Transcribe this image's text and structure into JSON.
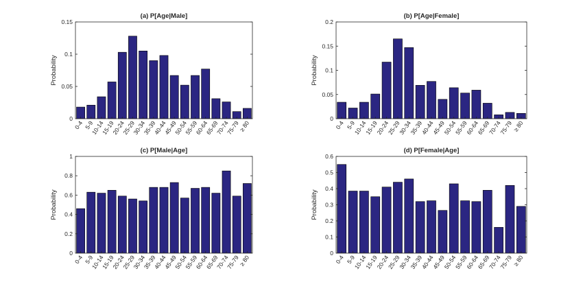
{
  "colors": {
    "bar": "#2b2682",
    "axis": "#262626",
    "background": "#ffffff"
  },
  "chart_data": [
    {
      "type": "bar",
      "title": "(a) P[Age|Male]",
      "xlabel": "",
      "ylabel": "Probability",
      "ylim": [
        0,
        0.15
      ],
      "yticks": [
        "0",
        "0.05",
        "0.1",
        "0.15"
      ],
      "categories": [
        "0-4",
        "5-9",
        "10-14",
        "15-19",
        "20-24",
        "25-29",
        "30-34",
        "35-39",
        "40-44",
        "45-49",
        "50-54",
        "55-59",
        "60-64",
        "65-69",
        "70-74",
        "75-79",
        "≥ 80"
      ],
      "values": [
        0.018,
        0.021,
        0.034,
        0.057,
        0.103,
        0.128,
        0.105,
        0.09,
        0.098,
        0.067,
        0.052,
        0.067,
        0.077,
        0.031,
        0.026,
        0.011,
        0.016
      ]
    },
    {
      "type": "bar",
      "title": "(b) P[Age|Female]",
      "xlabel": "",
      "ylabel": "Probability",
      "ylim": [
        0,
        0.2
      ],
      "yticks": [
        "0",
        "0.05",
        "0.1",
        "0.15",
        "0.2"
      ],
      "categories": [
        "0-4",
        "5-9",
        "10-14",
        "15-19",
        "20-24",
        "25-29",
        "30-34",
        "35-39",
        "40-44",
        "45-49",
        "50-54",
        "55-59",
        "60-64",
        "65-69",
        "70-74",
        "75-79",
        "≥ 80"
      ],
      "values": [
        0.034,
        0.022,
        0.034,
        0.051,
        0.117,
        0.165,
        0.147,
        0.069,
        0.077,
        0.04,
        0.064,
        0.053,
        0.059,
        0.032,
        0.008,
        0.013,
        0.011
      ]
    },
    {
      "type": "bar",
      "title": "(c) P[Male|Age]",
      "xlabel": "",
      "ylabel": "Probability",
      "ylim": [
        0,
        1
      ],
      "yticks": [
        "0",
        "0.2",
        "0.4",
        "0.6",
        "0.8",
        "1"
      ],
      "categories": [
        "0-4",
        "5-9",
        "10-14",
        "15-19",
        "20-24",
        "25-29",
        "30-34",
        "35-39",
        "40-44",
        "45-49",
        "50-54",
        "55-59",
        "60-64",
        "65-69",
        "70-74",
        "75-79",
        "≥ 80"
      ],
      "values": [
        0.46,
        0.63,
        0.62,
        0.65,
        0.59,
        0.56,
        0.54,
        0.68,
        0.68,
        0.73,
        0.57,
        0.67,
        0.68,
        0.62,
        0.85,
        0.59,
        0.72
      ]
    },
    {
      "type": "bar",
      "title": "(d) P[Female|Age]",
      "xlabel": "",
      "ylabel": "Probability",
      "ylim": [
        0,
        0.6
      ],
      "yticks": [
        "0",
        "0.1",
        "0.2",
        "0.3",
        "0.4",
        "0.5",
        "0.6"
      ],
      "categories": [
        "0-4",
        "5-9",
        "10-14",
        "15-19",
        "20-24",
        "25-29",
        "30-34",
        "35-39",
        "40-44",
        "45-49",
        "50-54",
        "55-59",
        "60-64",
        "65-69",
        "70-74",
        "75-79",
        "≥ 80"
      ],
      "values": [
        0.55,
        0.385,
        0.385,
        0.35,
        0.41,
        0.44,
        0.46,
        0.32,
        0.325,
        0.265,
        0.43,
        0.325,
        0.32,
        0.39,
        0.16,
        0.42,
        0.29
      ]
    }
  ]
}
